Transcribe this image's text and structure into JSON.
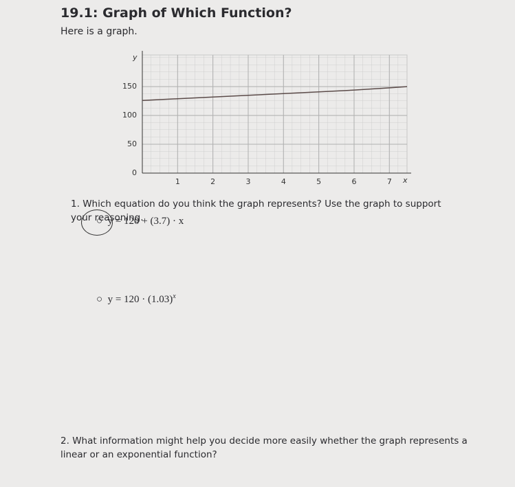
{
  "header": {
    "title": "19.1: Graph of Which Function?"
  },
  "intro": "Here is a graph.",
  "chart_data": {
    "type": "line",
    "x_label": "x",
    "y_label": "y",
    "x": [
      0,
      1,
      2,
      3,
      4,
      5,
      6,
      7,
      7.5
    ],
    "series": [
      {
        "color": "#5a4a48",
        "values": [
          126,
          129,
          132,
          135,
          138,
          141,
          144,
          148,
          150
        ]
      }
    ],
    "xlim": [
      0,
      7.5
    ],
    "ylim": [
      0,
      205
    ],
    "xticks": [
      1,
      2,
      3,
      4,
      5,
      6,
      7
    ],
    "yticks": [
      0,
      50,
      100,
      150
    ],
    "grid": true
  },
  "questions": [
    {
      "number": "1.",
      "text": "Which equation do you think the graph represents? Use the graph to support your reasoning.",
      "options": [
        {
          "text": "y = 120 + (3.7) · x"
        },
        {
          "text": "y = 120 · (1.03)",
          "superscript": "x"
        }
      ]
    },
    {
      "number": "2.",
      "text": "What information might help you decide more easily whether the graph represents a linear or an exponential function?"
    }
  ]
}
